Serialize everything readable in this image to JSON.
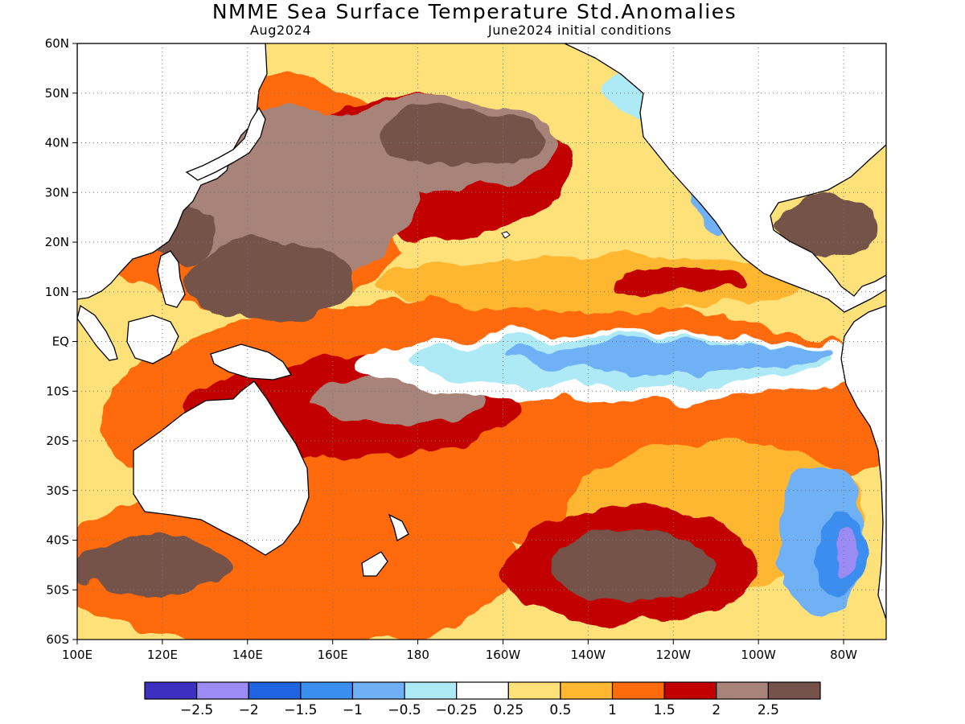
{
  "title": "NMME Sea Surface Temperature Std.Anomalies",
  "valid_month": "Aug2024",
  "initial_conditions": "June2024 initial conditions",
  "map": {
    "lon_range": [
      100,
      290
    ],
    "lat_range": [
      -60,
      60
    ],
    "grid": true,
    "lat_ticks": [
      {
        "value": 60,
        "label": "60N"
      },
      {
        "value": 50,
        "label": "50N"
      },
      {
        "value": 40,
        "label": "40N"
      },
      {
        "value": 30,
        "label": "30N"
      },
      {
        "value": 20,
        "label": "20N"
      },
      {
        "value": 10,
        "label": "10N"
      },
      {
        "value": 0,
        "label": "EQ"
      },
      {
        "value": -10,
        "label": "10S"
      },
      {
        "value": -20,
        "label": "20S"
      },
      {
        "value": -30,
        "label": "30S"
      },
      {
        "value": -40,
        "label": "40S"
      },
      {
        "value": -50,
        "label": "50S"
      },
      {
        "value": -60,
        "label": "60S"
      }
    ],
    "lon_ticks": [
      {
        "value": 100,
        "label": "100E"
      },
      {
        "value": 120,
        "label": "120E"
      },
      {
        "value": 140,
        "label": "140E"
      },
      {
        "value": 160,
        "label": "160E"
      },
      {
        "value": 180,
        "label": "180"
      },
      {
        "value": 200,
        "label": "160W"
      },
      {
        "value": 220,
        "label": "140W"
      },
      {
        "value": 240,
        "label": "120W"
      },
      {
        "value": 260,
        "label": "100W"
      },
      {
        "value": 280,
        "label": "80W"
      }
    ]
  },
  "colorbar": {
    "colors": [
      "#3d2fc0",
      "#9c8af5",
      "#1f63e0",
      "#3a8ef0",
      "#6fb0f5",
      "#aeeaf5",
      "#ffffff",
      "#ffe17a",
      "#ffb732",
      "#ff6a0a",
      "#c30000",
      "#a8837a",
      "#75524a"
    ],
    "labels": [
      "-2.5",
      "-2",
      "-1.5",
      "-1",
      "-0.5",
      "-0.25",
      "0.25",
      "0.5",
      "1",
      "1.5",
      "2",
      "2.5"
    ]
  },
  "anomaly_regions": [
    {
      "level": 1,
      "lon": 140,
      "lat": 30,
      "rx": 42,
      "ry": 24
    },
    {
      "level": 1,
      "lon": 200,
      "lat": -15,
      "rx": 95,
      "ry": 24
    },
    {
      "level": 1,
      "lon": 150,
      "lat": -45,
      "rx": 55,
      "ry": 17
    },
    {
      "level": 0.5,
      "lon": 250,
      "lat": -35,
      "rx": 35,
      "ry": 15
    },
    {
      "level": 0.5,
      "lon": 220,
      "lat": 12,
      "rx": 50,
      "ry": 6
    },
    {
      "level": 0.25,
      "lon": 205,
      "lat": 21,
      "rx": 30,
      "ry": 5
    },
    {
      "level": 1.5,
      "lon": 180,
      "lat": 35,
      "rx": 36,
      "ry": 14
    },
    {
      "level": 1.5,
      "lon": 165,
      "lat": -13,
      "rx": 40,
      "ry": 10
    },
    {
      "level": 1.5,
      "lon": 230,
      "lat": -45,
      "rx": 30,
      "ry": 12
    },
    {
      "level": 1.5,
      "lon": 240,
      "lat": 12,
      "rx": 16,
      "ry": 3
    },
    {
      "level": 2,
      "lon": 150,
      "lat": 30,
      "rx": 30,
      "ry": 18
    },
    {
      "level": 2,
      "lon": 185,
      "lat": 40,
      "rx": 28,
      "ry": 9
    },
    {
      "level": 2,
      "lon": 175,
      "lat": -12,
      "rx": 20,
      "ry": 5
    },
    {
      "level": 2.5,
      "lon": 190,
      "lat": 41,
      "rx": 20,
      "ry": 6
    },
    {
      "level": 2.5,
      "lon": 145,
      "lat": 12,
      "rx": 20,
      "ry": 8
    },
    {
      "level": 2.5,
      "lon": 125,
      "lat": 22,
      "rx": 8,
      "ry": 6
    },
    {
      "level": 2.5,
      "lon": 230,
      "lat": -45,
      "rx": 20,
      "ry": 7
    },
    {
      "level": 2.5,
      "lon": 118,
      "lat": -45,
      "rx": 18,
      "ry": 6
    },
    {
      "level": 2.5,
      "lon": 275,
      "lat": 23,
      "rx": 12,
      "ry": 6
    },
    {
      "level": -0.25,
      "lon": 225,
      "lat": -5,
      "rx": 60,
      "ry": 7
    },
    {
      "level": -0.5,
      "lon": 228,
      "lat": -4,
      "rx": 50,
      "ry": 5
    },
    {
      "level": -1,
      "lon": 240,
      "lat": -3,
      "rx": 38,
      "ry": 3
    },
    {
      "level": -0.5,
      "lon": 245,
      "lat": 50,
      "rx": 22,
      "ry": 6
    },
    {
      "level": -1,
      "lon": 250,
      "lat": 30,
      "rx": 6,
      "ry": 8
    },
    {
      "level": -1,
      "lon": 275,
      "lat": -40,
      "rx": 10,
      "ry": 15
    },
    {
      "level": -1.5,
      "lon": 279,
      "lat": -42,
      "rx": 6,
      "ry": 9
    },
    {
      "level": -2.5,
      "lon": 280,
      "lat": -42,
      "rx": 3,
      "ry": 5
    }
  ]
}
